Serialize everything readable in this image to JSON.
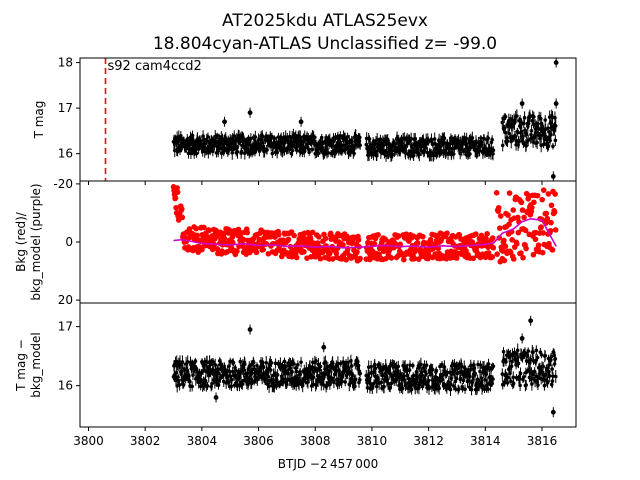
{
  "figure": {
    "title_line1": "AT2025kdu  ATLAS25evx",
    "title_line2": "18.804cyan-ATLAS Unclassified z= -99.0",
    "xlabel": "BTJD −2 457 000",
    "annotation": "s92 cam4ccd2",
    "colors": {
      "points": "#000000",
      "bkg": "#ff0000",
      "model": "#cc00cc",
      "marker_line": "#ff0000"
    }
  },
  "chart_data": [
    {
      "type": "scatter",
      "ylabel": "T mag",
      "ylim": [
        18.1,
        15.4
      ],
      "yticks": [
        16,
        17,
        18
      ],
      "xlim": [
        3799.7,
        3817.2
      ],
      "xticks": [
        3800,
        3802,
        3804,
        3806,
        3808,
        3810,
        3812,
        3814,
        3816
      ],
      "vline_x": 3800.6,
      "series": [
        {
          "segments": [
            {
              "x": [
                3803.0,
                3809.6
              ],
              "center": 16.2,
              "spread": 0.2
            },
            {
              "x": [
                3809.8,
                3814.3
              ],
              "center": 16.15,
              "spread": 0.2
            },
            {
              "x": [
                3814.6,
                3816.5
              ],
              "center": 16.5,
              "spread": 0.35
            }
          ],
          "outliers": [
            [
              3805.7,
              16.9
            ],
            [
              3804.8,
              16.7
            ],
            [
              3807.5,
              16.7
            ],
            [
              3816.4,
              15.5
            ],
            [
              3816.5,
              17.1
            ],
            [
              3816.5,
              18.0
            ],
            [
              3815.3,
              17.1
            ]
          ]
        }
      ]
    },
    {
      "type": "scatter",
      "ylabel_line1": "Bkg (red)/",
      "ylabel_line2": "bkg_model (purple)",
      "ylim": [
        -21,
        21
      ],
      "yticks": [
        -20,
        0,
        20
      ],
      "xlim": [
        3799.7,
        3817.2
      ],
      "model": {
        "x": [
          3803.0,
          3803.3,
          3803.6,
          3804.0,
          3804.5,
          3805.0,
          3805.5,
          3806.0,
          3806.5,
          3807.0,
          3807.5,
          3808.0,
          3808.5,
          3809.0,
          3809.6,
          3809.9,
          3810.5,
          3811.0,
          3811.5,
          3812.0,
          3812.5,
          3813.0,
          3813.5,
          3814.0,
          3814.3,
          3814.6,
          3815.0,
          3815.3,
          3815.6,
          3816.0,
          3816.5
        ],
        "y": [
          -0.5,
          -0.8,
          -0.3,
          0.5,
          0.8,
          1.0,
          0.6,
          1.2,
          1.0,
          1.5,
          1.3,
          1.8,
          1.5,
          2.0,
          1.8,
          1.5,
          1.2,
          1.6,
          1.4,
          1.8,
          1.3,
          1.6,
          1.2,
          0.8,
          0.3,
          -3.0,
          -4.5,
          -7.0,
          -8.0,
          -7.5,
          1.5
        ]
      },
      "bkg_segments": [
        {
          "x": [
            3803.0,
            3803.4
          ],
          "start": -18,
          "end": -3,
          "spread": 6
        },
        {
          "x": [
            3803.4,
            3809.6
          ],
          "start": -1,
          "end": 2,
          "spread": 4.5
        },
        {
          "x": [
            3809.8,
            3814.3
          ],
          "start": 2,
          "end": 1,
          "spread": 4.5
        },
        {
          "x": [
            3814.4,
            3816.5
          ],
          "start": -5,
          "end": -7,
          "spread": 12
        }
      ]
    },
    {
      "type": "scatter",
      "ylabel_line1": "T mag −",
      "ylabel_line2": "bkg_model",
      "ylim": [
        17.4,
        15.3
      ],
      "yticks": [
        16,
        17
      ],
      "xlim": [
        3799.7,
        3817.2
      ],
      "series": [
        {
          "segments": [
            {
              "x": [
                3803.0,
                3809.6
              ],
              "center": 16.2,
              "spread": 0.22
            },
            {
              "x": [
                3809.8,
                3814.3
              ],
              "center": 16.15,
              "spread": 0.22
            },
            {
              "x": [
                3814.6,
                3816.5
              ],
              "center": 16.3,
              "spread": 0.3
            }
          ],
          "outliers": [
            [
              3805.7,
              16.95
            ],
            [
              3804.5,
              15.8
            ],
            [
              3808.3,
              16.65
            ],
            [
              3816.4,
              15.55
            ],
            [
              3815.6,
              17.1
            ],
            [
              3815.3,
              16.8
            ]
          ]
        }
      ]
    }
  ]
}
